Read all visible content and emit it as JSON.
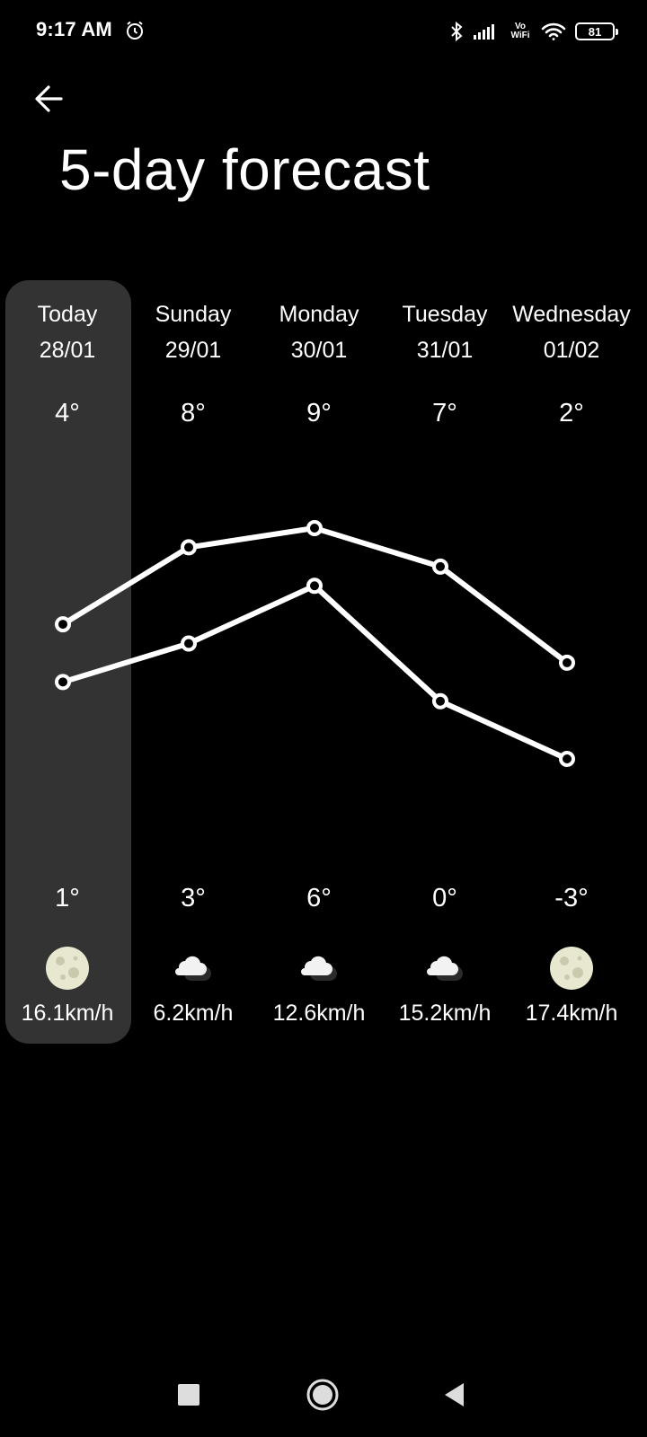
{
  "status_bar": {
    "time": "9:17 AM",
    "alarm_icon": "alarm-clock-icon",
    "bluetooth_icon": "bluetooth-icon",
    "signal_icon": "cellular-signal-icon",
    "volte_text_top": "Vo",
    "volte_text_bottom": "WiFi",
    "wifi_icon": "wifi-icon",
    "battery_level": "81"
  },
  "header": {
    "back_icon": "arrow-left-icon",
    "title": "5-day forecast"
  },
  "forecast": {
    "days": [
      {
        "name": "Today",
        "date": "28/01",
        "high": "4°",
        "low": "1°",
        "high_value": 4,
        "low_value": 1,
        "icon": "moon-icon",
        "wind": "16.1km/h",
        "selected": true
      },
      {
        "name": "Sunday",
        "date": "29/01",
        "high": "8°",
        "low": "3°",
        "high_value": 8,
        "low_value": 3,
        "icon": "cloudy-night-icon",
        "wind": "6.2km/h",
        "selected": false
      },
      {
        "name": "Monday",
        "date": "30/01",
        "high": "9°",
        "low": "6°",
        "high_value": 9,
        "low_value": 6,
        "icon": "cloudy-night-icon",
        "wind": "12.6km/h",
        "selected": false
      },
      {
        "name": "Tuesday",
        "date": "31/01",
        "high": "7°",
        "low": "0°",
        "high_value": 7,
        "low_value": 0,
        "icon": "cloudy-night-icon",
        "wind": "15.2km/h",
        "selected": false
      },
      {
        "name": "Wednesday",
        "date": "01/02",
        "high": "2°",
        "low": "-3°",
        "high_value": 2,
        "low_value": -3,
        "icon": "moon-icon",
        "wind": "17.4km/h",
        "selected": false
      }
    ],
    "colors": {
      "highlight": "#333333",
      "line": "#ffffff",
      "moon": "#e8e8d0"
    }
  },
  "nav_bar": {
    "recent_icon": "square-recents-icon",
    "home_icon": "circle-home-icon",
    "back_icon": "triangle-back-icon"
  }
}
